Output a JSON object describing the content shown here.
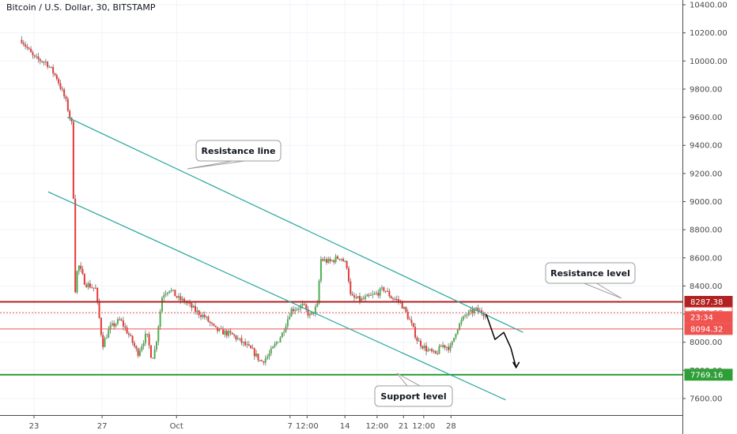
{
  "header": {
    "title": "Bitcoin / U.S. Dollar, 30, BITSTAMP"
  },
  "chart_data": {
    "type": "candlestick",
    "title": "Bitcoin / U.S. Dollar, 30, BITSTAMP",
    "ylim": [
      7550,
      10420
    ],
    "y_ticks": [
      "10400.00",
      "10200.00",
      "10000.00",
      "9800.00",
      "9600.00",
      "9400.00",
      "9200.00",
      "9000.00",
      "8800.00",
      "8600.00",
      "8400.00",
      "8200.00",
      "8000.00",
      "7800.00",
      "7600.00"
    ],
    "y_tick_values": [
      10400,
      10200,
      10000,
      9800,
      9600,
      9400,
      9200,
      9000,
      8800,
      8600,
      8400,
      8200,
      8000,
      7800,
      7600
    ],
    "x_ticks": [
      "23",
      "27",
      "Oct",
      "7",
      "12:00",
      "14",
      "12:00",
      "21",
      "12:00",
      "28"
    ],
    "x_tick_days": [
      0.0,
      3.87,
      8.1,
      14.55,
      15.52,
      17.67,
      19.5,
      21.0,
      22.15,
      23.7
    ],
    "price_path": [
      [
        -0.7,
        10150
      ],
      [
        0.0,
        10020
      ],
      [
        0.7,
        9990
      ],
      [
        1.3,
        9880
      ],
      [
        1.8,
        9720
      ],
      [
        2.2,
        9520
      ],
      [
        2.3,
        8320
      ],
      [
        2.5,
        8560
      ],
      [
        2.9,
        8420
      ],
      [
        3.5,
        8380
      ],
      [
        3.9,
        7980
      ],
      [
        4.3,
        8100
      ],
      [
        4.9,
        8160
      ],
      [
        5.4,
        8050
      ],
      [
        5.9,
        7920
      ],
      [
        6.4,
        8060
      ],
      [
        6.7,
        7880
      ],
      [
        6.9,
        7960
      ],
      [
        7.3,
        8340
      ],
      [
        7.7,
        8380
      ],
      [
        8.2,
        8310
      ],
      [
        8.7,
        8280
      ],
      [
        9.2,
        8220
      ],
      [
        9.7,
        8180
      ],
      [
        10.3,
        8090
      ],
      [
        11.3,
        8050
      ],
      [
        12.4,
        7940
      ],
      [
        12.9,
        7860
      ],
      [
        13.3,
        7900
      ],
      [
        14.1,
        8060
      ],
      [
        14.6,
        8230
      ],
      [
        15.3,
        8260
      ],
      [
        15.7,
        8180
      ],
      [
        16.1,
        8260
      ],
      [
        16.3,
        8590
      ],
      [
        16.8,
        8570
      ],
      [
        17.4,
        8610
      ],
      [
        17.8,
        8540
      ],
      [
        18.0,
        8320
      ],
      [
        18.6,
        8300
      ],
      [
        19.4,
        8340
      ],
      [
        19.9,
        8380
      ],
      [
        20.3,
        8320
      ],
      [
        20.8,
        8290
      ],
      [
        21.1,
        8220
      ],
      [
        21.4,
        8140
      ],
      [
        21.8,
        8010
      ],
      [
        22.3,
        7950
      ],
      [
        22.8,
        7910
      ],
      [
        23.2,
        7980
      ],
      [
        23.7,
        7960
      ],
      [
        24.0,
        8090
      ],
      [
        24.5,
        8190
      ],
      [
        25.1,
        8230
      ],
      [
        25.7,
        8200
      ]
    ],
    "projection": [
      [
        25.7,
        8200
      ],
      [
        26.2,
        8020
      ],
      [
        26.7,
        8070
      ],
      [
        27.1,
        7960
      ],
      [
        27.4,
        7820
      ]
    ],
    "trend_lines": [
      {
        "name": "upper",
        "points": [
          [
            1.9,
            9600
          ],
          [
            27.8,
            8070
          ]
        ]
      },
      {
        "name": "lower",
        "points": [
          [
            0.8,
            9070
          ],
          [
            26.8,
            7590
          ]
        ]
      }
    ],
    "levels": [
      {
        "price": 8287.38,
        "label": "8287.38",
        "kind": "resistance"
      },
      {
        "price": 7769.16,
        "label": "7769.16",
        "kind": "support"
      },
      {
        "price": 8094.32,
        "label": "8094.32",
        "kind": "last"
      }
    ],
    "price_tags": [
      {
        "text": "8287.38",
        "price": 8287.38,
        "style": "dark-red"
      },
      {
        "text": "8209.98",
        "price": 8209.98,
        "style": "outline-red"
      },
      {
        "text": "23:34",
        "price": 8150,
        "style": "light-red"
      },
      {
        "text": "8094.32",
        "price": 8094.32,
        "style": "light-red"
      },
      {
        "text": "7769.16",
        "price": 7769.16,
        "style": "green"
      }
    ],
    "annotations": [
      {
        "text": "Resistance line",
        "anchor": [
          15.0,
          9320
        ]
      },
      {
        "text": "Resistance level",
        "anchor": [
          26.4,
          8410
        ]
      },
      {
        "text": "Support level",
        "anchor": [
          22.8,
          7680
        ]
      }
    ]
  },
  "colors": {
    "up": "#4caf50",
    "down": "#e53935",
    "wick": "#6b6b6b",
    "trend": "#26a69a",
    "resistance": "#b22222",
    "support": "#2e9e36",
    "last": "#ef5350",
    "projection": "#000000"
  }
}
